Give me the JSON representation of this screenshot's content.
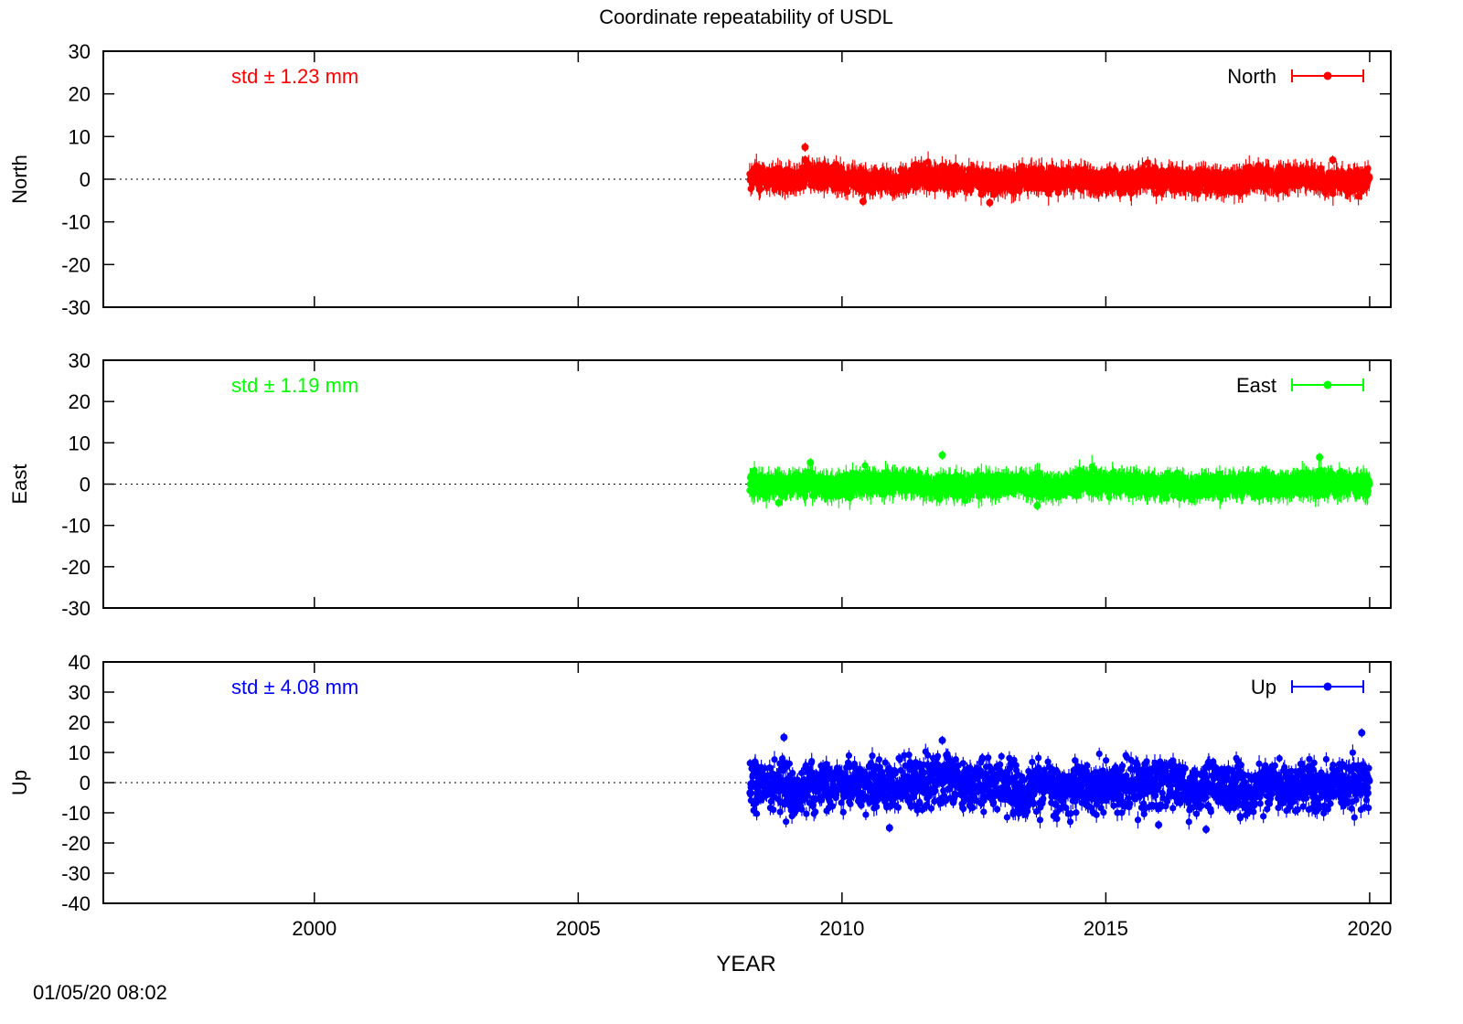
{
  "chart_data": {
    "type": "scatter",
    "title": "Coordinate repeatability of USDL",
    "xlabel": "YEAR",
    "xlim": [
      1996,
      2020.4
    ],
    "xticks": [
      2000,
      2005,
      2010,
      2015,
      2020
    ],
    "timestamp": "01/05/20 08:02",
    "panels": [
      {
        "name": "North",
        "ylabel": "North",
        "legend": "North",
        "std_text": "std ± 1.23 mm",
        "color": "#ff0000",
        "ylim": [
          -30,
          30
        ],
        "yticks": [
          -30,
          -20,
          -10,
          0,
          10,
          20,
          30
        ],
        "data_start": 2008.25,
        "data_end": 2020.0,
        "spread": 1.23,
        "outliers": [
          [
            2009.3,
            7.5
          ],
          [
            2009.3,
            4.5
          ],
          [
            2019.3,
            4.5
          ],
          [
            2012.8,
            -5.5
          ],
          [
            2010.4,
            -5.2
          ]
        ]
      },
      {
        "name": "East",
        "ylabel": "East",
        "legend": "East",
        "std_text": "std ± 1.19 mm",
        "color": "#00ff00",
        "ylim": [
          -30,
          30
        ],
        "yticks": [
          -30,
          -20,
          -10,
          0,
          10,
          20,
          30
        ],
        "data_start": 2008.25,
        "data_end": 2020.0,
        "spread": 1.19,
        "outliers": [
          [
            2011.9,
            7.0
          ],
          [
            2019.05,
            6.5
          ],
          [
            2009.4,
            5.2
          ],
          [
            2008.8,
            -4.5
          ],
          [
            2013.7,
            -5.2
          ]
        ]
      },
      {
        "name": "Up",
        "ylabel": "Up",
        "legend": "Up",
        "std_text": "std ± 4.08 mm",
        "color": "#0000ff",
        "ylim": [
          -40,
          40
        ],
        "yticks": [
          -40,
          -30,
          -20,
          -10,
          0,
          10,
          20,
          30,
          40
        ],
        "data_start": 2008.25,
        "data_end": 2020.0,
        "spread": 4.08,
        "outliers": [
          [
            2019.85,
            16.5
          ],
          [
            2008.9,
            15.0
          ],
          [
            2011.9,
            14.0
          ],
          [
            2010.9,
            -15.0
          ],
          [
            2016.9,
            -15.5
          ],
          [
            2016.0,
            -14.0
          ]
        ]
      }
    ]
  }
}
